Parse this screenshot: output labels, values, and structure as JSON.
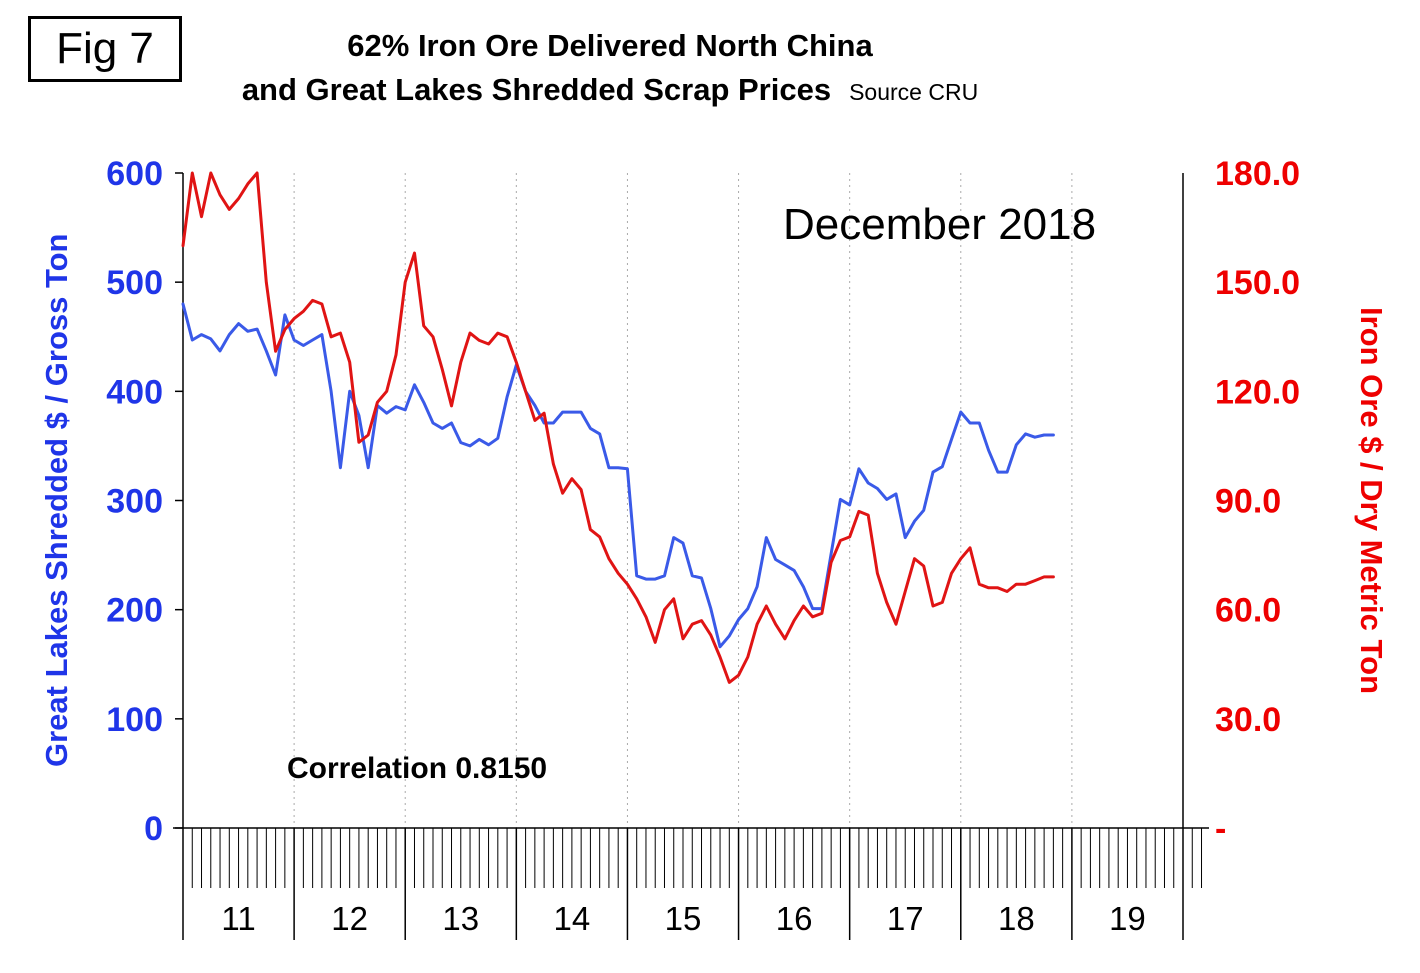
{
  "fig_label": "Fig 7",
  "title": {
    "line1": "62% Iron Ore Delivered North China",
    "line2": "and Great Lakes Shredded Scrap Prices",
    "source": "Source CRU"
  },
  "annotations": {
    "date": "December 2018",
    "correlation": "Correlation 0.8150"
  },
  "colors": {
    "scrap_blue": "#1f35e8",
    "iron_ore_red": "#ee0000",
    "grid_gray": "#aaaaaa",
    "axis_black": "#000000"
  },
  "chart_data": {
    "type": "line",
    "title": "62% Iron Ore Delivered North China and Great Lakes Shredded Scrap Prices",
    "grid_color": "#aaaaaa",
    "x_axis": {
      "labels": [
        "11",
        "12",
        "13",
        "14",
        "15",
        "16",
        "17",
        "18",
        "19"
      ],
      "year_span": [
        2011,
        2020
      ],
      "tick_interval": "monthly"
    },
    "left_axis": {
      "label": "Great Lakes Shredded $ / Gross Ton",
      "color": "#1f35e8",
      "range": [
        0,
        600
      ],
      "tick_values": [
        0,
        100,
        200,
        300,
        400,
        500,
        600
      ],
      "tick_labels": [
        "0",
        "100",
        "200",
        "300",
        "400",
        "500",
        "600"
      ]
    },
    "right_axis": {
      "label": "Iron Ore $ / Dry Metric Ton",
      "color": "#ee0000",
      "range": [
        0,
        180
      ],
      "tick_values": [
        0,
        30,
        60,
        90,
        120,
        150,
        180
      ],
      "tick_labels": [
        "-",
        "30.0",
        "60.0",
        "90.0",
        "120.0",
        "150.0",
        "180.0"
      ]
    },
    "series": [
      {
        "name": "Great Lakes Shredded $ / Gross Ton",
        "axis": "left",
        "color": "#3a5ae8",
        "start": "2011-01",
        "values": [
          480,
          447,
          452,
          448,
          437,
          452,
          462,
          455,
          457,
          437,
          415,
          470,
          447,
          442,
          447,
          452,
          400,
          330,
          400,
          378,
          330,
          387,
          380,
          386,
          383,
          406,
          390,
          371,
          366,
          371,
          353,
          350,
          356,
          351,
          357,
          395,
          424,
          400,
          387,
          371,
          371,
          381,
          381,
          381,
          366,
          361,
          330,
          330,
          329,
          231,
          228,
          228,
          231,
          266,
          261,
          231,
          229,
          201,
          166,
          176,
          191,
          201,
          221,
          266,
          246,
          241,
          236,
          221,
          201,
          201,
          251,
          301,
          296,
          329,
          316,
          311,
          301,
          306,
          266,
          281,
          291,
          326,
          331,
          356,
          381,
          371,
          371,
          346,
          326,
          326,
          351,
          361,
          358,
          360,
          360
        ]
      },
      {
        "name": "Iron Ore $ / Dry Metric Ton",
        "axis": "right",
        "color": "#e01414",
        "start": "2011-01",
        "values": [
          160,
          180,
          168,
          180,
          174,
          170,
          173,
          177,
          180,
          150,
          131,
          137,
          140,
          142,
          145,
          144,
          135,
          136,
          128,
          106,
          108,
          117,
          120,
          130,
          150,
          158,
          138,
          135,
          126,
          116,
          128,
          136,
          134,
          133,
          136,
          135,
          128,
          120,
          112,
          114,
          100,
          92,
          96,
          93,
          82,
          80,
          74,
          70,
          67,
          63,
          58,
          51,
          60,
          63,
          52,
          56,
          57,
          53,
          47,
          40,
          42,
          47,
          56,
          61,
          56,
          52,
          57,
          61,
          58,
          59,
          73,
          79,
          80,
          87,
          86,
          70,
          62,
          56,
          65,
          74,
          72,
          61,
          62,
          70,
          74,
          77,
          67,
          66,
          66,
          65,
          67,
          67,
          68,
          69,
          69
        ]
      }
    ]
  }
}
